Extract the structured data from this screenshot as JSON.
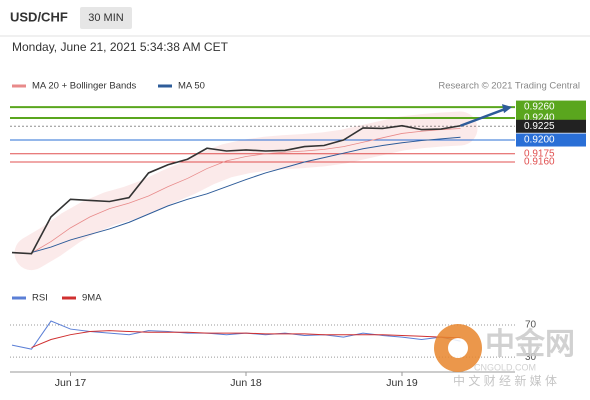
{
  "header": {
    "symbol": "USD/CHF",
    "interval": "30 MIN",
    "timestamp": "Monday, June 21, 2021 5:34:38 AM CET"
  },
  "chart_data": [
    {
      "type": "line",
      "credit": "Research © 2021 Trading Central",
      "categories": [
        null,
        null,
        null,
        "Jun 17",
        null,
        null,
        null,
        null,
        null,
        null,
        null,
        null,
        "Jun 18",
        null,
        null,
        null,
        null,
        null,
        null,
        null,
        "Jun 19",
        null,
        null,
        null
      ],
      "values": [
        0.8995,
        0.8993,
        0.906,
        0.9092,
        0.909,
        0.9088,
        0.9095,
        0.914,
        0.9155,
        0.9165,
        0.9185,
        0.918,
        0.9182,
        0.918,
        0.9181,
        0.9188,
        0.919,
        0.92,
        0.9222,
        0.9221,
        0.9226,
        0.9219,
        0.922,
        0.9226
      ],
      "color": "#333333",
      "series": [
        {
          "name": "MA 20 + Bollinger Bands",
          "color": "#e88a8a",
          "values": [
            null,
            0.8994,
            0.9015,
            0.904,
            0.906,
            0.9075,
            0.9085,
            0.9098,
            0.9115,
            0.913,
            0.9148,
            0.9162,
            0.917,
            0.9175,
            0.9178,
            0.918,
            0.9183,
            0.9188,
            0.9196,
            0.9204,
            0.9212,
            0.9216,
            0.9219,
            0.9221
          ]
        },
        {
          "name": "MA 50",
          "color": "#2e5c99",
          "values": [
            null,
            0.8995,
            0.9005,
            0.9018,
            0.9028,
            0.9038,
            0.905,
            0.9065,
            0.908,
            0.9092,
            0.9102,
            0.9115,
            0.9128,
            0.914,
            0.915,
            0.916,
            0.9168,
            0.9176,
            0.9184,
            0.919,
            0.9195,
            0.9199,
            0.9202,
            0.9205
          ]
        }
      ],
      "levels": [
        {
          "value": 0.926,
          "label": "0.9260",
          "color": "#5aa61e"
        },
        {
          "value": 0.924,
          "label": "0.9240",
          "color": "#5aa61e"
        },
        {
          "value": 0.9225,
          "label": "0.9225",
          "color": "#222222"
        },
        {
          "value": 0.92,
          "label": "0.9200",
          "color": "#2a6fd6"
        },
        {
          "value": 0.9175,
          "label": "0.9175",
          "color": "#e05050"
        },
        {
          "value": 0.916,
          "label": "0.9160",
          "color": "#e05050"
        }
      ],
      "ylim": [
        0.8945,
        0.9282
      ]
    },
    {
      "type": "line",
      "series": [
        {
          "name": "RSI",
          "color": "#5b7fd6",
          "values": [
            45,
            40,
            75,
            65,
            62,
            60,
            58,
            63,
            62,
            60,
            60,
            58,
            60,
            58,
            60,
            57,
            58,
            55,
            60,
            57,
            55,
            52,
            55,
            50
          ]
        },
        {
          "name": "9MA",
          "color": "#d03030",
          "values": [
            null,
            42,
            52,
            58,
            62,
            63,
            62,
            61,
            61,
            61,
            60,
            60,
            60,
            59,
            59,
            59,
            58,
            58,
            58,
            58,
            57,
            56,
            55,
            54
          ]
        }
      ],
      "ylim": [
        14,
        95
      ],
      "yticks": [
        70,
        30
      ]
    }
  ],
  "watermark": {
    "brand": "中金网",
    "site": "CNGOLD.COM",
    "slogan": "中 文 财 经 新 媒 体"
  }
}
